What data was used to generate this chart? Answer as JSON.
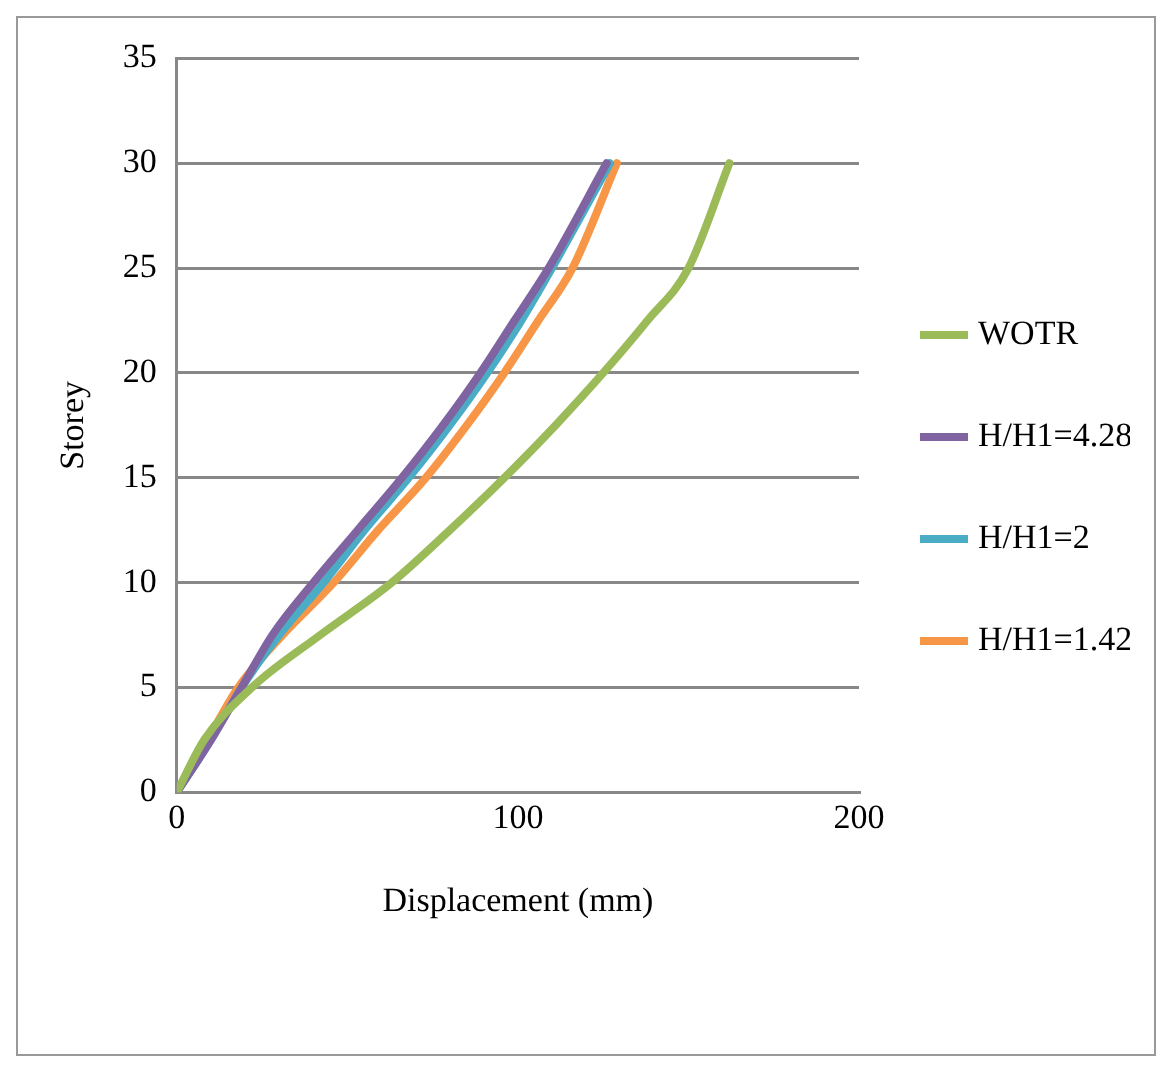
{
  "chart_data": {
    "type": "line",
    "xlabel": "Displacement (mm)",
    "ylabel": "Storey",
    "xlim": [
      0,
      200
    ],
    "xticks": [
      0,
      100,
      200
    ],
    "ylim": [
      0,
      35
    ],
    "yticks": [
      0,
      5,
      10,
      15,
      20,
      25,
      30,
      35
    ],
    "grid": "y",
    "legend": "right",
    "marker": "none",
    "line_style": "solid",
    "series": [
      {
        "name": "WOTR",
        "color": "#9bbb59",
        "x": [
          0,
          8,
          22,
          42,
          63,
          80,
          96,
          111,
          125,
          138,
          150,
          162
        ],
        "values": [
          0,
          2.5,
          5,
          7.5,
          10,
          12.5,
          15,
          17.5,
          20,
          22.5,
          25,
          30
        ]
      },
      {
        "name": "H/H1=4.28",
        "color": "#8064a2",
        "x": [
          0,
          10,
          19,
          28,
          40,
          53,
          66,
          78,
          89,
          99,
          109,
          126
        ],
        "values": [
          0,
          2.5,
          5,
          7.5,
          10,
          12.5,
          15,
          17.5,
          20,
          22.5,
          25,
          30
        ]
      },
      {
        "name": "H/H1=2",
        "color": "#4bacc6",
        "x": [
          0,
          10,
          19,
          30,
          43,
          55,
          68,
          80,
          91,
          101,
          110,
          127
        ],
        "values": [
          0,
          2.5,
          5,
          7.5,
          10,
          12.5,
          15,
          17.5,
          20,
          22.5,
          25,
          30
        ]
      },
      {
        "name": "H/H1=1.42",
        "color": "#f79646",
        "x": [
          0,
          9,
          18,
          31,
          46,
          59,
          73,
          85,
          96,
          106,
          116,
          129
        ],
        "values": [
          0,
          2.5,
          5,
          7.5,
          10,
          12.5,
          15,
          17.5,
          20,
          22.5,
          25,
          30
        ]
      }
    ]
  }
}
